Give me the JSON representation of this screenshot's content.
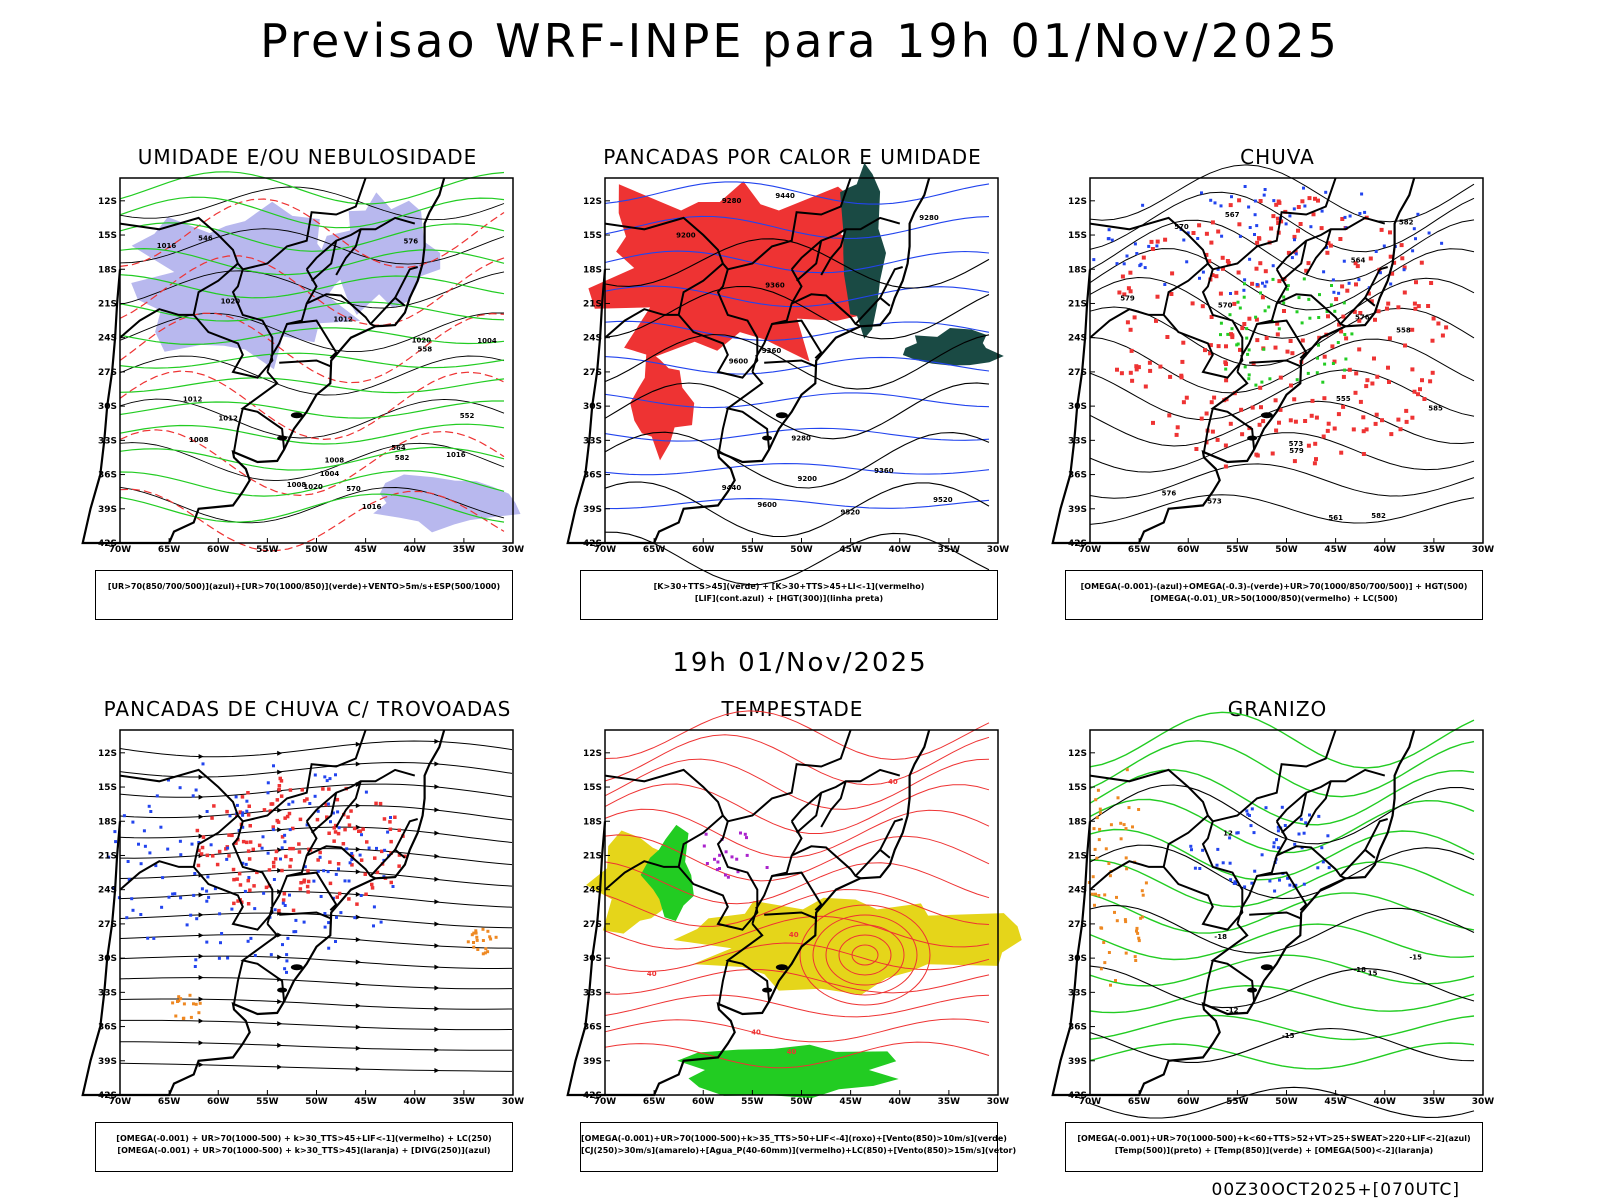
{
  "header": {
    "title": "Previsao WRF-INPE  para 19h 01/Nov/2025"
  },
  "middle_title": "19h 01/Nov/2025",
  "footer": "00Z30OCT2025+[070UTC]",
  "axes": {
    "lat_labels": [
      "12S",
      "15S",
      "18S",
      "21S",
      "24S",
      "27S",
      "30S",
      "33S",
      "36S",
      "39S",
      "42S"
    ],
    "lon_labels": [
      "70W",
      "65W",
      "60W",
      "55W",
      "50W",
      "45W",
      "40W",
      "35W",
      "30W"
    ]
  },
  "colors": {
    "red": "#ee3333",
    "green": "#22cc22",
    "blue": "#2244ee",
    "lavender": "#b8b8ee",
    "darkteal": "#1a4a44",
    "yellow": "#e5d51a",
    "orange": "#ee8822",
    "purple": "#aa22cc"
  },
  "panels": [
    {
      "title": "UMIDADE E/OU NEBULOSIDADE",
      "legend": [
        "[UR>70(850/700/500)](azul)+[UR>70(1000/850)](verde)+VENTO>5m/s+ESP(500/1000)"
      ],
      "contour_labels": [
        "1008",
        "1008",
        "1012",
        "1016",
        "1004",
        "1008",
        "1004",
        "1012",
        "1020",
        "1020",
        "1012",
        "1016",
        "1020",
        "1016",
        "576",
        "570",
        "564",
        "582",
        "552",
        "558",
        "546"
      ]
    },
    {
      "title": "PANCADAS POR CALOR E UMIDADE",
      "legend": [
        "[K>30+TTS>45](verde) + [K>30+TTS>45+LI<-1](vermelho)",
        "[LIF](cont.azul) + [HGT(300)](linha preta)"
      ],
      "contour_labels": [
        "9600",
        "9520",
        "9440",
        "9360",
        "9280",
        "9200",
        "9600",
        "9520",
        "9440",
        "9360",
        "9280",
        "9200",
        "9360",
        "9280"
      ]
    },
    {
      "title": "CHUVA",
      "legend": [
        "[OMEGA(-0.001)-(azul)+OMEGA(-0.3)-(verde)+UR>70(1000/850/700/500)] + HGT(500)",
        "[OMEGA(-0.01)_UR>50(1000/850)(vermelho) + LC(500)"
      ],
      "contour_labels": [
        "585",
        "582",
        "579",
        "576",
        "573",
        "570",
        "567",
        "564",
        "561",
        "558",
        "555",
        "582",
        "579",
        "576",
        "573",
        "570"
      ]
    },
    {
      "title": "PANCADAS DE CHUVA C/ TROVOADAS",
      "legend": [
        "[OMEGA(-0.001) + UR>70(1000-500) + k>30_TTS>45+LIF<-1](vermelho) + LC(250)",
        "[OMEGA(-0.001) + UR>70(1000-500) + k>30_TTS>45](laranja) + [DIVG(250)](azul)"
      ],
      "contour_labels": []
    },
    {
      "title": "TEMPESTADE",
      "legend": [
        "[OMEGA(-0.001)+UR>70(1000-500)+k>35_TTS>50+LIF<-4](roxo)+[Vento(850)>10m/s](verde)",
        "[CJ(250)>30m/s](amarelo)+[Agua_P(40-60mm)](vermelho)+LC(850)+[Vento(850)>15m/s](vetor)"
      ],
      "contour_labels": [
        "40",
        "40",
        "40",
        "40",
        "40"
      ]
    },
    {
      "title": "GRANIZO",
      "legend": [
        "[OMEGA(-0.001)+UR>70(1000-500)+k<60+TTS>52+VT>25+SWEAT>220+LIF<-2](azul)",
        "[Temp(500)](preto) + [Temp(850)](verde) + [OMEGA(500)<-2](laranja)"
      ],
      "contour_labels": [
        "-12",
        "-15",
        "-18",
        "-15",
        "-18",
        "12",
        "15"
      ]
    }
  ]
}
